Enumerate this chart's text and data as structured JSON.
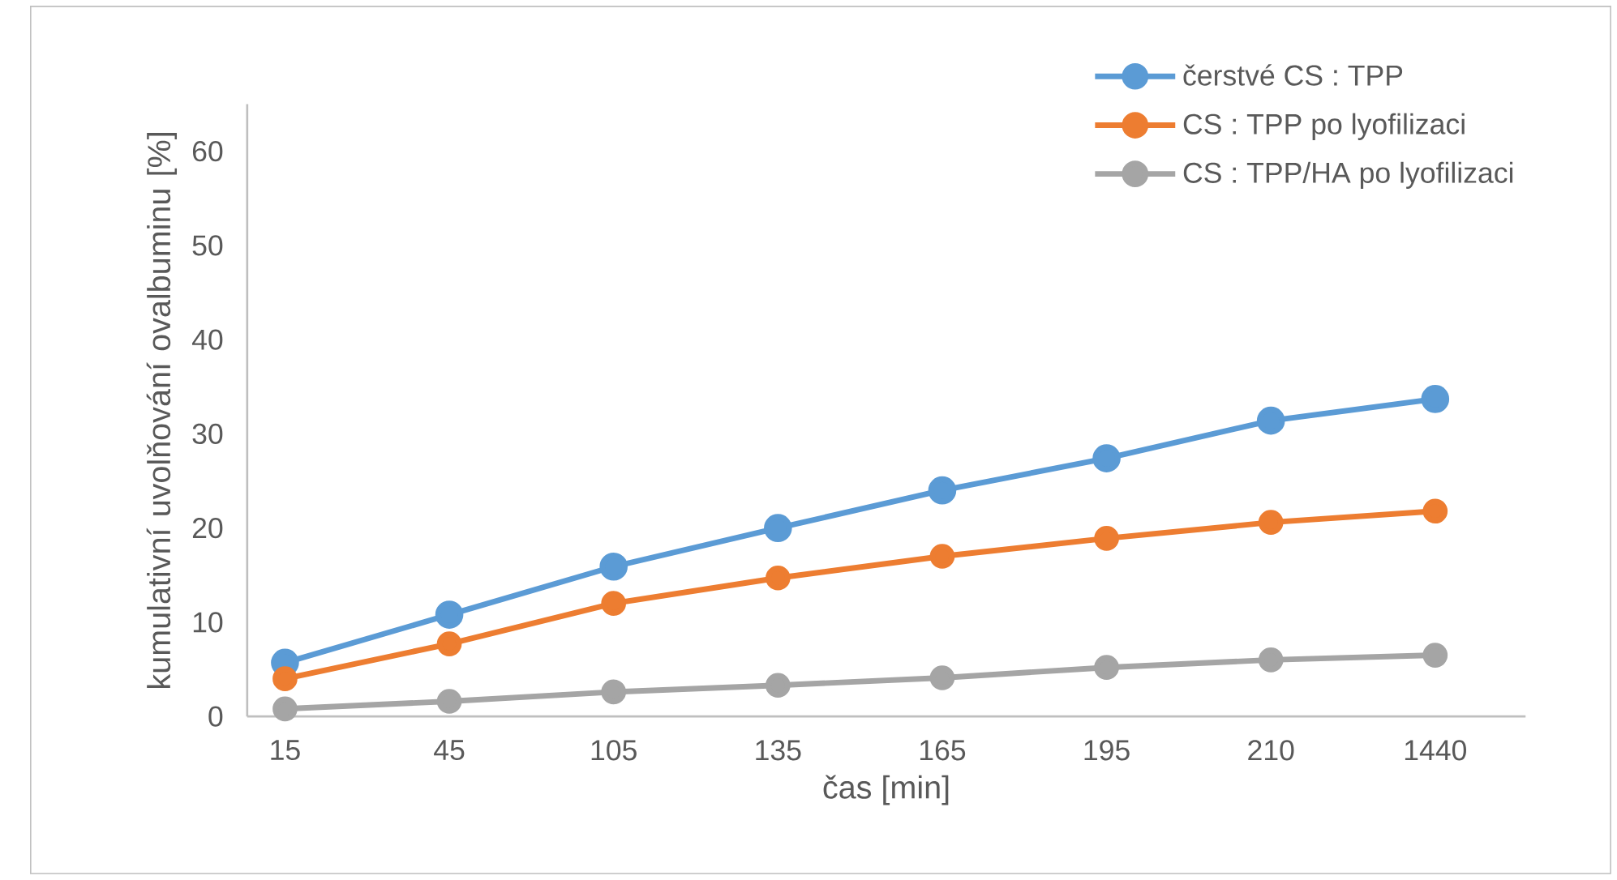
{
  "chart_data": {
    "type": "line",
    "xlabel": "čas [min]",
    "ylabel": "kumulativní uvolňování ovalbuminu [%]",
    "categories": [
      "15",
      "45",
      "105",
      "135",
      "165",
      "195",
      "210",
      "1440"
    ],
    "series": [
      {
        "name": "čerstvé CS : TPP",
        "color": "#5b9bd5",
        "values": [
          5.7,
          10.8,
          15.9,
          20.0,
          24.0,
          27.4,
          31.4,
          33.7
        ]
      },
      {
        "name": "CS : TPP po lyofilizaci",
        "color": "#ed7d31",
        "values": [
          4.0,
          7.7,
          12.0,
          14.7,
          17.0,
          18.9,
          20.6,
          21.8
        ]
      },
      {
        "name": "CS : TPP/HA po lyofilizaci",
        "color": "#a5a5a5",
        "values": [
          0.8,
          1.6,
          2.6,
          3.3,
          4.1,
          5.2,
          6.0,
          6.5
        ]
      }
    ],
    "ylim": [
      0,
      65
    ],
    "yticks": [
      0,
      10,
      20,
      30,
      40,
      50,
      60
    ],
    "legend": "top right",
    "marker": "circle",
    "line_style": "solid"
  }
}
